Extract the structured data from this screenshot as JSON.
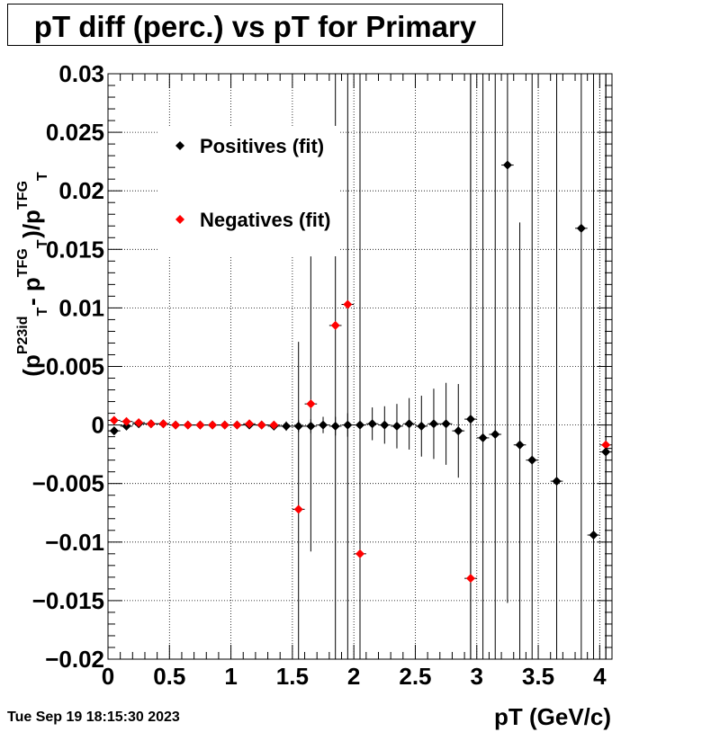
{
  "title": "pT diff (perc.) vs pT for Primary",
  "footer_timestamp": "Tue Sep 19 18:15:30 2023",
  "chart_data": {
    "type": "scatter",
    "title": "pT diff (perc.) vs pT for Primary",
    "xlabel": "pT (GeV/c)",
    "ylabel_parts": {
      "a": "(p",
      "a_sub": "T",
      "a_sup": "P23id",
      "b": " - p",
      "b_sub": "T",
      "b_sup": "TFG",
      "c": ")/p",
      "c_sub": "T",
      "c_sup": "TFG"
    },
    "xlim": [
      0,
      4.1
    ],
    "ylim": [
      -0.02,
      0.03
    ],
    "grid": true,
    "legend_position": "top-left",
    "x_ticks": [
      {
        "v": 0,
        "label": "0"
      },
      {
        "v": 0.5,
        "label": "0.5"
      },
      {
        "v": 1,
        "label": "1"
      },
      {
        "v": 1.5,
        "label": "1.5"
      },
      {
        "v": 2,
        "label": "2"
      },
      {
        "v": 2.5,
        "label": "2.5"
      },
      {
        "v": 3,
        "label": "3"
      },
      {
        "v": 3.5,
        "label": "3.5"
      },
      {
        "v": 4,
        "label": "4"
      }
    ],
    "y_ticks": [
      {
        "v": 0.03,
        "label": "0.03"
      },
      {
        "v": 0.025,
        "label": "0.025"
      },
      {
        "v": 0.02,
        "label": "0.02"
      },
      {
        "v": 0.015,
        "label": "0.015"
      },
      {
        "v": 0.01,
        "label": "0.01"
      },
      {
        "v": 0.005,
        "label": "0.005"
      },
      {
        "v": 0,
        "label": "0"
      },
      {
        "v": -0.005,
        "label": "−0.005"
      },
      {
        "v": -0.01,
        "label": "−0.01"
      },
      {
        "v": -0.015,
        "label": "−0.015"
      },
      {
        "v": -0.02,
        "label": "−0.02"
      }
    ],
    "series": [
      {
        "name": "Positives (fit)",
        "color": "#000000",
        "points": [
          {
            "x": 0.05,
            "y": -0.0005,
            "err": 0.0002
          },
          {
            "x": 0.15,
            "y": -0.0001,
            "err": 0.0001
          },
          {
            "x": 0.25,
            "y": 0.0001,
            "err": 0.0001
          },
          {
            "x": 0.35,
            "y": 0.0001,
            "err": 0.0001
          },
          {
            "x": 0.45,
            "y": 0.0001,
            "err": 0.0001
          },
          {
            "x": 0.55,
            "y": 0.0,
            "err": 0.0001
          },
          {
            "x": 0.65,
            "y": 0.0,
            "err": 0.0001
          },
          {
            "x": 0.75,
            "y": 0.0,
            "err": 0.0001
          },
          {
            "x": 0.85,
            "y": 0.0,
            "err": 0.0001
          },
          {
            "x": 0.95,
            "y": 0.0,
            "err": 0.0001
          },
          {
            "x": 1.05,
            "y": 0.0,
            "err": 0.0001
          },
          {
            "x": 1.15,
            "y": 0.0,
            "err": 0.0001
          },
          {
            "x": 1.25,
            "y": 0.0,
            "err": 0.0002
          },
          {
            "x": 1.35,
            "y": -0.0001,
            "err": 0.0003
          },
          {
            "x": 1.45,
            "y": -0.0001,
            "err": 0.0004
          },
          {
            "x": 1.55,
            "y": -0.0001,
            "err": 0.0005
          },
          {
            "x": 1.65,
            "y": -0.0001,
            "err": 0.0006
          },
          {
            "x": 1.75,
            "y": 0.0,
            "err": 0.0007
          },
          {
            "x": 1.85,
            "y": -0.0001,
            "err": 0.0008
          },
          {
            "x": 1.95,
            "y": 0.0,
            "err": 0.001
          },
          {
            "x": 2.05,
            "y": 0.0,
            "err": 0.0012
          },
          {
            "x": 2.15,
            "y": 0.0001,
            "err": 0.0014
          },
          {
            "x": 2.25,
            "y": 0.0,
            "err": 0.0016
          },
          {
            "x": 2.35,
            "y": -0.0001,
            "err": 0.0019
          },
          {
            "x": 2.45,
            "y": 0.0001,
            "err": 0.0022
          },
          {
            "x": 2.55,
            "y": -0.0001,
            "err": 0.0026
          },
          {
            "x": 2.65,
            "y": 0.0001,
            "err": 0.003
          },
          {
            "x": 2.75,
            "y": 0.0001,
            "err": 0.0035
          },
          {
            "x": 2.85,
            "y": -0.0005,
            "err": 0.004
          },
          {
            "x": 2.95,
            "y": 0.0005,
            "err": 0.045
          },
          {
            "x": 3.05,
            "y": -0.0011,
            "err": 0.05
          },
          {
            "x": 3.15,
            "y": -0.0008,
            "err": 0.05
          },
          {
            "x": 3.25,
            "y": 0.0222,
            "err": 0.0374
          },
          {
            "x": 3.35,
            "y": -0.0017,
            "err": 0.019
          },
          {
            "x": 3.45,
            "y": -0.003,
            "err": 0.05
          },
          {
            "x": 3.65,
            "y": -0.0048,
            "err": 0.05
          },
          {
            "x": 3.85,
            "y": 0.0168,
            "err": 0.05
          },
          {
            "x": 3.95,
            "y": -0.0094,
            "err": 0.05
          },
          {
            "x": 4.05,
            "y": -0.0023,
            "err": 0.05
          }
        ]
      },
      {
        "name": "Negatives (fit)",
        "color": "#ff0000",
        "points": [
          {
            "x": 0.05,
            "y": 0.0004,
            "err": 0.0001
          },
          {
            "x": 0.15,
            "y": 0.0003,
            "err": 0.0001
          },
          {
            "x": 0.25,
            "y": 0.0002,
            "err": 0.0001
          },
          {
            "x": 0.35,
            "y": 0.0001,
            "err": 0.0001
          },
          {
            "x": 0.45,
            "y": 0.0001,
            "err": 0.0001
          },
          {
            "x": 0.55,
            "y": 0.0,
            "err": 0.0001
          },
          {
            "x": 0.65,
            "y": 0.0,
            "err": 0.0001
          },
          {
            "x": 0.75,
            "y": 0.0,
            "err": 0.0001
          },
          {
            "x": 0.85,
            "y": 0.0,
            "err": 0.0001
          },
          {
            "x": 0.95,
            "y": 0.0,
            "err": 0.0001
          },
          {
            "x": 1.05,
            "y": 0.0,
            "err": 0.0001
          },
          {
            "x": 1.15,
            "y": 0.0001,
            "err": 0.0002
          },
          {
            "x": 1.25,
            "y": 0.0,
            "err": 0.0002
          },
          {
            "x": 1.35,
            "y": 0.0,
            "err": 0.0003
          },
          {
            "x": 1.55,
            "y": -0.0072,
            "err": 0.0143
          },
          {
            "x": 1.65,
            "y": 0.0018,
            "err": 0.0126
          },
          {
            "x": 1.85,
            "y": 0.0085,
            "err": 0.05
          },
          {
            "x": 1.95,
            "y": 0.0103,
            "err": 0.05
          },
          {
            "x": 2.05,
            "y": -0.011,
            "err": 0.05
          },
          {
            "x": 2.95,
            "y": -0.0131,
            "err": 0.05
          },
          {
            "x": 4.05,
            "y": -0.0017,
            "err": 0.05
          }
        ]
      }
    ]
  }
}
